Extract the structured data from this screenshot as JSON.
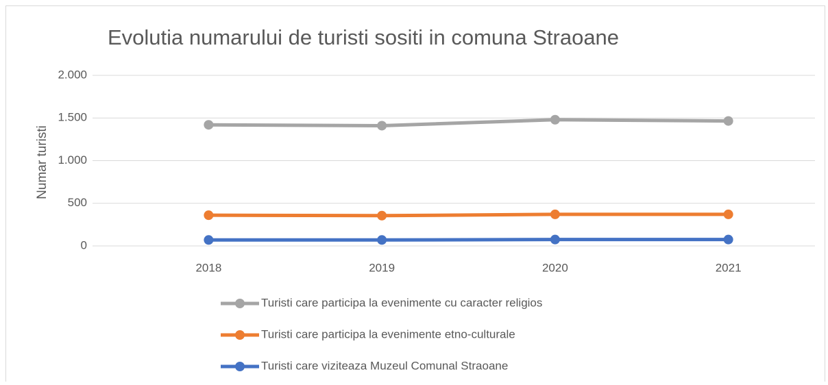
{
  "chart_data": {
    "type": "line",
    "title": "Evolutia numarului de turisti sositi in comuna Straoane",
    "y_label": "Numar turisti",
    "categories": [
      "2018",
      "2019",
      "2020",
      "2021"
    ],
    "series": [
      {
        "name": "Turisti care participa la evenimente cu caracter religios",
        "color": "#a5a5a5",
        "values": [
          1420,
          1410,
          1480,
          1465
        ]
      },
      {
        "name": "Turisti care participa la evenimente etno-culturale",
        "color": "#ed7d31",
        "values": [
          360,
          355,
          370,
          370
        ]
      },
      {
        "name": "Turisti care viziteaza Muzeul Comunal Straoane",
        "color": "#4472c4",
        "values": [
          70,
          70,
          75,
          75
        ]
      }
    ],
    "ylim": [
      0,
      2000
    ],
    "yticks": [
      0,
      500,
      {
        "value": 1000,
        "label": "1.000"
      },
      {
        "value": 1500,
        "label": "1.500"
      },
      {
        "value": 2000,
        "label": "2.000"
      }
    ],
    "grid": true,
    "legend": "bottom"
  }
}
